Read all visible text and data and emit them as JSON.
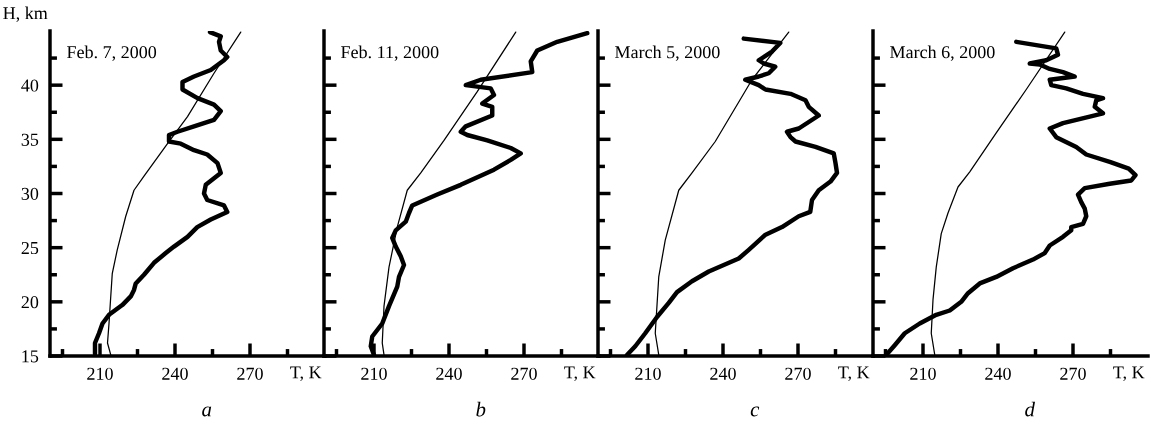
{
  "chart_data": [
    {
      "type": "line",
      "title": "Feb. 7, 2000",
      "xlabel": "T, K",
      "ylabel": "H, km",
      "annotations": [
        "a"
      ],
      "grid": false,
      "xlim": [
        190,
        300
      ],
      "xticks": [
        {
          "value": 195,
          "label": null
        },
        210,
        {
          "value": 225,
          "label": null
        },
        240,
        {
          "value": 255,
          "label": null
        },
        270,
        {
          "value": 285,
          "label": null
        }
      ],
      "ylim": [
        15,
        45
      ],
      "yticks": [
        15,
        {
          "value": 17.5,
          "label": null
        },
        20,
        {
          "value": 22.5,
          "label": null
        },
        25,
        {
          "value": 27.5,
          "label": null
        },
        30,
        {
          "value": 32.5,
          "label": null
        },
        35,
        {
          "value": 37.5,
          "label": null
        },
        40,
        {
          "value": 42.5,
          "label": null
        }
      ],
      "series": [
        {
          "color": "#000000",
          "x": [
            208,
            208,
            209.6,
            211,
            213.6,
            218.9,
            222.3,
            223.6,
            224.3,
            227.6,
            231.6,
            236.3,
            239.6,
            245,
            248.9,
            254.3,
            260.9,
            259.6,
            252.9,
            251.6,
            252.3,
            258.3,
            257,
            252.9,
            247.6,
            242.3,
            237.6,
            237.6,
            241,
            247.6,
            255.6,
            258.3,
            255.6,
            249,
            243,
            243,
            247.6,
            254.3,
            259.6,
            260.9,
            258.3,
            257.6,
            258.3,
            254
          ],
          "values": [
            15.2,
            16.2,
            17.1,
            18.0,
            18.8,
            19.7,
            20.5,
            21.1,
            21.7,
            22.5,
            23.6,
            24.5,
            25.1,
            26.0,
            26.9,
            27.6,
            28.3,
            28.9,
            29.4,
            30.0,
            30.8,
            31.9,
            32.8,
            33.6,
            34.0,
            34.6,
            34.8,
            35.4,
            35.7,
            36.2,
            36.8,
            37.6,
            38.2,
            38.8,
            39.6,
            40.3,
            40.8,
            41.4,
            42.3,
            42.6,
            43.2,
            44.0,
            44.5,
            44.9
          ]
        },
        {
          "color": "#000000",
          "x": [
            214.3,
            213,
            213.6,
            214.3,
            214.9,
            216.9,
            220.3,
            223.6,
            227.6,
            237,
            245,
            255.6,
            266.3
          ],
          "values": [
            15.1,
            16.2,
            18.0,
            20.5,
            22.6,
            24.8,
            27.9,
            30.3,
            31.6,
            34.6,
            37.1,
            41.1,
            44.9
          ]
        }
      ]
    },
    {
      "type": "line",
      "title": "Feb. 11, 2000",
      "xlabel": "T, K",
      "annotations": [
        "b"
      ],
      "grid": false,
      "tick_labels": "x",
      "xlim": [
        190,
        300
      ],
      "xticks": [
        {
          "value": 195,
          "label": null
        },
        210,
        {
          "value": 225,
          "label": null
        },
        240,
        {
          "value": 255,
          "label": null
        },
        270,
        {
          "value": 285,
          "label": null
        }
      ],
      "ylim": [
        15,
        45
      ],
      "yticks": [
        15,
        17.5,
        20,
        22.5,
        25,
        27.5,
        30,
        32.5,
        35,
        37.5,
        40,
        42.5
      ],
      "series": [
        {
          "color": "#000000",
          "x": [
            210,
            208.7,
            209.3,
            213.3,
            216,
            219.3,
            220,
            222,
            220.7,
            218.7,
            217.3,
            218.7,
            222.7,
            224,
            225.3,
            235.3,
            244.7,
            258,
            264.7,
            268.7,
            264.7,
            255.3,
            247.3,
            244.7,
            246.7,
            257.3,
            257.3,
            253.3,
            258,
            256.7,
            246.7,
            252.7,
            273.3,
            272.7,
            275.3,
            283.3,
            295.3
          ],
          "values": [
            15.1,
            15.9,
            16.8,
            18.0,
            19.6,
            21.4,
            22.3,
            23.4,
            24.2,
            25.1,
            25.9,
            26.6,
            27.4,
            28.2,
            28.9,
            29.9,
            30.8,
            32.2,
            33.1,
            33.7,
            34.2,
            34.9,
            35.4,
            35.7,
            36.2,
            37.2,
            38.0,
            38.3,
            39.1,
            39.7,
            40.0,
            40.5,
            41.2,
            42.2,
            43.2,
            44.0,
            44.8
          ]
        },
        {
          "color": "#000000",
          "x": [
            214,
            213.3,
            214,
            216,
            219.3,
            223.3,
            228.7,
            238,
            251.3,
            266.7
          ],
          "values": [
            15.1,
            16.2,
            19.6,
            23.2,
            26.9,
            30.3,
            31.9,
            34.9,
            39.4,
            44.9
          ]
        }
      ]
    },
    {
      "type": "line",
      "title": "March 5, 2000",
      "xlabel": "T, K",
      "annotations": [
        "c"
      ],
      "grid": false,
      "tick_labels": "x",
      "xlim": [
        190,
        300
      ],
      "xticks": [
        {
          "value": 195,
          "label": null
        },
        210,
        {
          "value": 225,
          "label": null
        },
        240,
        {
          "value": 255,
          "label": null
        },
        270,
        {
          "value": 285,
          "label": null
        }
      ],
      "ylim": [
        15,
        45
      ],
      "yticks": [
        15,
        17.5,
        20,
        22.5,
        25,
        27.5,
        30,
        32.5,
        35,
        37.5,
        40,
        42.5
      ],
      "series": [
        {
          "color": "#000000",
          "x": [
            201.6,
            204.9,
            208.9,
            213.6,
            218.3,
            221.6,
            227.6,
            234.3,
            240.3,
            246.3,
            250.3,
            257,
            263.6,
            270.3,
            274.9,
            275.6,
            278.3,
            283,
            285.6,
            285,
            284.3,
            277,
            269,
            267,
            265.6,
            270.3,
            274.3,
            278.3,
            274.3,
            273,
            267,
            257,
            254.3,
            248.9,
            254.3,
            258.3,
            260.9,
            256.3,
            254.3,
            259.6,
            262.9,
            248.3
          ],
          "values": [
            15.1,
            15.9,
            17.1,
            18.6,
            19.9,
            20.9,
            21.9,
            22.8,
            23.4,
            24.0,
            24.8,
            26.2,
            26.9,
            27.9,
            28.3,
            29.4,
            30.3,
            31.1,
            31.9,
            32.8,
            33.7,
            34.3,
            34.8,
            35.2,
            35.7,
            36.0,
            36.6,
            37.2,
            38.0,
            38.6,
            39.2,
            39.6,
            40.0,
            40.5,
            40.8,
            41.1,
            41.7,
            42.0,
            42.3,
            43.1,
            43.9,
            44.3
          ]
        },
        {
          "color": "#000000",
          "x": [
            214.3,
            212.9,
            214.3,
            216.9,
            222.3,
            227.6,
            236.9,
            251.6,
            266.3
          ],
          "values": [
            15.1,
            17.1,
            22.3,
            25.7,
            30.3,
            31.9,
            34.8,
            40.5,
            44.9
          ]
        }
      ]
    },
    {
      "type": "line",
      "title": "March 6, 2000",
      "xlabel": "T, K",
      "annotations": [
        "d"
      ],
      "grid": false,
      "tick_labels": "x",
      "xlim": [
        190,
        300
      ],
      "xticks": [
        {
          "value": 195,
          "label": null
        },
        210,
        {
          "value": 225,
          "label": null
        },
        240,
        {
          "value": 255,
          "label": null
        },
        270,
        {
          "value": 285,
          "label": null
        }
      ],
      "ylim": [
        15,
        45
      ],
      "yticks": [
        15,
        17.5,
        20,
        22.5,
        25,
        27.5,
        30,
        32.5,
        35,
        37.5,
        40,
        42.5
      ],
      "series": [
        {
          "color": "#000000",
          "x": [
            195.3,
            198.7,
            202.7,
            208.7,
            215.3,
            220.7,
            225.3,
            228,
            232.7,
            239.3,
            246,
            254,
            258.7,
            260.7,
            266,
            269.3,
            269.3,
            274,
            275.3,
            274.7,
            273.3,
            272,
            274.7,
            284.7,
            293.3,
            295,
            292.3,
            285,
            275.3,
            271.3,
            263.3,
            260.7,
            266,
            276.7,
            282,
            278.7,
            279.3,
            282,
            274,
            267.3,
            261.3,
            260.7,
            270.7,
            266,
            260.7,
            256.7,
            252.7,
            259.3,
            264,
            263.3,
            247.3
          ],
          "values": [
            15.1,
            16.0,
            17.1,
            18.0,
            18.8,
            19.2,
            20.0,
            20.8,
            21.7,
            22.3,
            23.1,
            23.9,
            24.5,
            25.2,
            26.0,
            26.6,
            26.9,
            27.2,
            27.9,
            28.6,
            29.2,
            29.9,
            30.5,
            30.9,
            31.2,
            31.7,
            32.3,
            32.9,
            33.6,
            34.3,
            35.2,
            36.0,
            36.5,
            37.1,
            37.4,
            38.0,
            38.6,
            38.8,
            39.2,
            39.7,
            40.0,
            40.5,
            40.8,
            41.2,
            41.5,
            41.9,
            42.0,
            42.3,
            42.8,
            43.4,
            44.0
          ]
        },
        {
          "color": "#000000",
          "x": [
            214.7,
            213.3,
            214,
            215.3,
            217.3,
            220,
            224,
            228.7,
            239.3,
            251.3,
            266.7
          ],
          "values": [
            15.1,
            17.1,
            20.2,
            23.2,
            26.3,
            28.2,
            30.6,
            32.0,
            35.6,
            39.6,
            44.9
          ]
        }
      ]
    }
  ]
}
